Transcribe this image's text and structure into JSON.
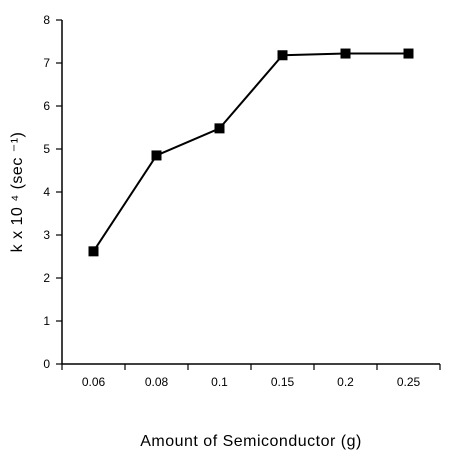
{
  "chart_data": {
    "type": "line",
    "categories": [
      "0.06",
      "0.08",
      "0.1",
      "0.15",
      "0.2",
      "0.25"
    ],
    "series": [
      {
        "values": [
          2.62,
          4.85,
          5.48,
          7.18,
          7.22,
          7.22
        ]
      }
    ],
    "xlabel": "Amount of Semiconductor (g)",
    "ylabel": "k x 10 ⁴ (sec ⁻¹)",
    "ylim": [
      0,
      8
    ],
    "yticks": [
      "0",
      "1",
      "2",
      "3",
      "4",
      "5",
      "6",
      "7",
      "8"
    ],
    "grid": false,
    "marker": "square",
    "colors": {
      "line": "#000000",
      "marker": "#000000"
    }
  }
}
